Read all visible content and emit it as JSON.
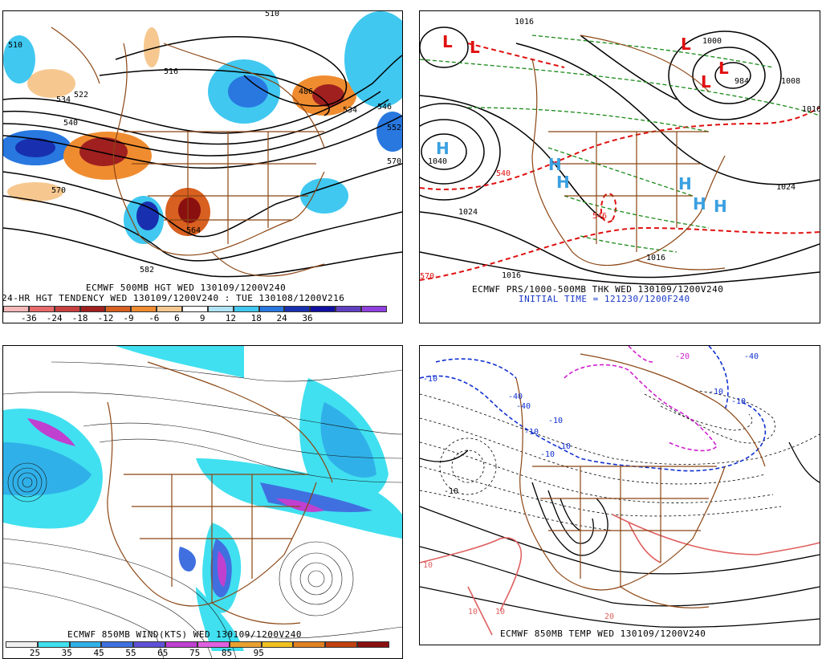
{
  "panels": {
    "p1": {
      "caption1": "ECMWF 500MB HGT WED 130109/1200V240",
      "caption2": "24-HR HGT TENDENCY WED 130109/1200V240 : TUE 130108/1200V216",
      "colorbar_labels": [
        "-36",
        "-24",
        "-18",
        "-12",
        "-9",
        "-6",
        "6",
        "9",
        "12",
        "18",
        "24",
        "36"
      ],
      "colorbar_colors": [
        "#f4b8b8",
        "#e86a6a",
        "#c84040",
        "#a02020",
        "#d86020",
        "#f08c30",
        "#f6c890",
        "#ffffff",
        "#b0e4f4",
        "#40c8f0",
        "#2878e0",
        "#1830b0",
        "#1010a0",
        "#6040c0",
        "#9040e0"
      ],
      "contour_labels": [
        "510",
        "516",
        "522",
        "534",
        "540",
        "570",
        "582",
        "546",
        "552",
        "570",
        "486",
        "534",
        "510",
        "564"
      ]
    },
    "p2": {
      "caption1": "ECMWF PRS/1000-500MB THK WED 130109/1200V240",
      "caption2": "INITIAL TIME = 121230/1200F240",
      "contour_labels": [
        "1016",
        "1040",
        "1024",
        "1016",
        "1016",
        "1024",
        "1008",
        "1000",
        "984",
        "540",
        "570",
        "546",
        "1016"
      ],
      "highs": [
        "H",
        "H",
        "H",
        "H",
        "H",
        "H"
      ],
      "lows": [
        "L",
        "L",
        "L",
        "L",
        "L"
      ]
    },
    "p3": {
      "caption1": "ECMWF 850MB WIND(KTS) WED 130109/1200V240",
      "colorbar_labels": [
        "25",
        "35",
        "45",
        "55",
        "65",
        "75",
        "85",
        "95"
      ],
      "colorbar_colors": [
        "#f0f0f0",
        "#40e0f0",
        "#30b0e8",
        "#4070e0",
        "#6050d8",
        "#c040d0",
        "#e060e0",
        "#e8a030",
        "#f0c020",
        "#e08020",
        "#c04010",
        "#8a1010"
      ]
    },
    "p4": {
      "caption1": "ECMWF 850MB TEMP WED 130109/1200V240",
      "contour_labels": [
        "-10",
        "-40",
        "-40",
        "-10",
        "-10",
        "-10",
        "-10",
        "-40",
        "-10",
        "-10",
        "10",
        "10",
        "10",
        "-20",
        "20",
        "-10"
      ]
    }
  },
  "colors": {
    "coast": "#8b4513",
    "contour": "#000000",
    "thickness": "#e01010",
    "thickness_green": "#1a8a1a",
    "high_label": "#3aa0e0",
    "low_label": "#e01010",
    "temp_cold": "#1030d0",
    "temp_magenta": "#d020d0",
    "temp_warm": "#e06060"
  }
}
